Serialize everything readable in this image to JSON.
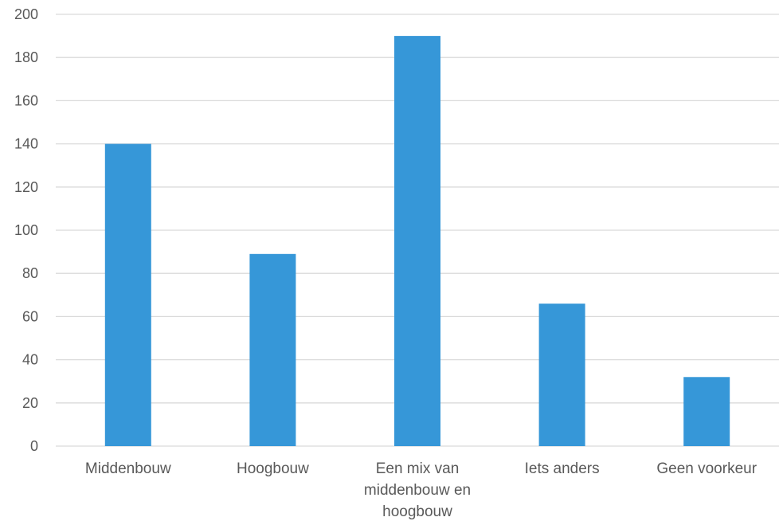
{
  "chart_data": {
    "type": "bar",
    "categories": [
      [
        "Middenbouw"
      ],
      [
        "Hoogbouw"
      ],
      [
        "Een mix van",
        "middenbouw en",
        "hoogbouw"
      ],
      [
        "Iets anders"
      ],
      [
        "Geen voorkeur"
      ]
    ],
    "values": [
      140,
      89,
      190,
      66,
      32
    ],
    "ylim": [
      0,
      200
    ],
    "yticks": [
      0,
      20,
      40,
      60,
      80,
      100,
      120,
      140,
      160,
      180,
      200
    ],
    "grid": true,
    "legend": "none",
    "bar_color": "#3697d8",
    "grid_color": "#d9d9d9",
    "label_color": "#595959"
  }
}
